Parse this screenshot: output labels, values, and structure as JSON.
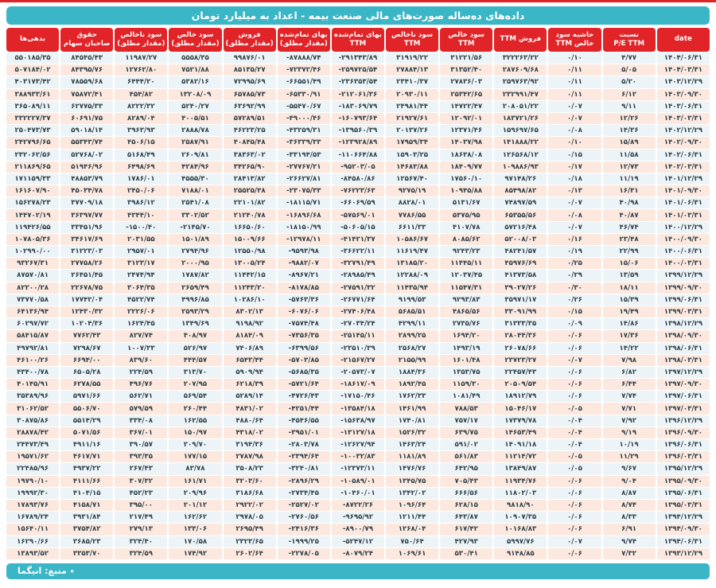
{
  "title": "داده‌های ده‌ساله صورت‌های مالی صنعت بیمه - اعداد به میلیارد تومان",
  "footer": {
    "source_label": "٭ منبع: انیگما"
  },
  "colors": {
    "accent_cyan": "#3bb6c6",
    "header_red": "#e02428",
    "row_pink": "#fce8de",
    "row_light": "#edf4f7",
    "cell_text": "#2f4049"
  },
  "table": {
    "columns": [
      {
        "id": "liabilities",
        "lines": [
          "بدهی‌ها"
        ]
      },
      {
        "id": "equity",
        "lines": [
          "حقوق",
          "صاحبان سهام"
        ]
      },
      {
        "id": "gross-profit-abs",
        "lines": [
          "سود ناخالص",
          "(مقدار مطلق)"
        ]
      },
      {
        "id": "net-profit-abs",
        "lines": [
          "سود خالص",
          "(مقدار مطلق)"
        ]
      },
      {
        "id": "sales-abs",
        "lines": [
          "فروش",
          "(مقدار مطلق)"
        ]
      },
      {
        "id": "cogs-abs",
        "lines": [
          "بهای تمام‌شده",
          "(مقدار مطلق)"
        ]
      },
      {
        "id": "cogs-ttm",
        "lines": [
          "بهای تمام‌شده",
          "TTM"
        ]
      },
      {
        "id": "gross-profit-ttm",
        "lines": [
          "سود ناخالص",
          "TTM"
        ]
      },
      {
        "id": "net-profit-ttm",
        "lines": [
          "سود خالص",
          "TTM"
        ]
      },
      {
        "id": "sales-ttm",
        "lines": [
          "فروش TTM"
        ]
      },
      {
        "id": "net-margin-ttm",
        "lines": [
          "حاشیه سود",
          "خالص TTM"
        ]
      },
      {
        "id": "pe-ratio-ttm",
        "lines": [
          "نسبت",
          "P/E  TTM"
        ]
      },
      {
        "id": "date",
        "lines": [
          "date"
        ]
      }
    ],
    "rows": [
      [
        "۵۵۰۱۸۵/۳۵",
        "۸۴۵۴۵/۴۳",
        "۱۱۹۸۷/۲۷",
        "۵۵۵۸/۳۵",
        "۹۹۸۷۶/۰۱",
        "-۸۷۸۸۸/۷۴",
        "-۲۹۱۳۴۳/۸۹",
        "۳۱۹۱۹/۲۲",
        "۳۱۲۲۱/۵۶",
        "۳۲۲۲۶۳/۲۲",
        "۰/۱۰",
        "۴/۷۷",
        "۱۴۰۴/۰۶/۳۱"
      ],
      [
        "۵۰۷۱۸۴/۰۲",
        "۸۴۳۹۵/۷۶",
        "۱۲۷۶۲/۸۰",
        "۷۵۲۱/۸۸",
        "۸۵۱۳۵/۲۷",
        "-۷۲۳۷۲/۴۶",
        "-۲۵۹۷۲۵/۵۴",
        "۲۷۸۸۴/۱۳",
        "۳۱۳۵۲/۴۰",
        "۲۸۷۶۰۹/۶۸",
        "۰/۱۱",
        "۵/۰۵",
        "۱۴۰۴/۰۳/۳۱"
      ],
      [
        "۴۰۳۱۷۳/۴۲",
        "۷۸۵۵۹/۶۸",
        "۶۴۴۴/۲۰",
        "۵۳۸۲/۱۶",
        "۷۲۹۹۵/۶۹",
        "-۶۶۵۵۱/۴۹",
        "-۲۳۶۳۵۳/۵۴",
        "۲۳۴۱۰/۳۷",
        "۲۷۸۳۶/۰۳",
        "۲۵۹۷۶۳/۹۲",
        "۰/۱۱",
        "۵/۲۰",
        "۱۴۰۳/۱۲/۲۹"
      ],
      [
        "۳۸۸۹۳۳/۶۱",
        "۷۵۸۷۲/۴۱",
        "۴۵۴/۸۲",
        "۱۳۲۰۸/۰۹",
        "۶۵۷۸۵/۷۳",
        "-۶۵۳۳۰/۹۱",
        "-۲۱۲۰۶۱/۳۶",
        "۲۰۹۳۰/۱۱",
        "۲۵۳۴۲/۶۵",
        "۲۳۲۹۹۱/۴۷",
        "۰/۱۱",
        "۶/۱۲",
        "۱۴۰۳/۰۹/۳۰"
      ],
      [
        "۳۶۵۰۸۹/۱۱",
        "۶۲۷۷۵/۳۳",
        "۸۲۲۲/۳۲",
        "۵۲۴۰/۲۷",
        "۶۳۶۹۲/۹۹",
        "-۵۵۴۷۰/۶۷",
        "-۱۸۳۰۶۹/۷۹",
        "۲۴۹۸۱/۴۴",
        "۱۴۷۲۲/۴۷",
        "۲۰۸۰۵۱/۲۲",
        "۰/۰۷",
        "۹/۱۱",
        "۱۴۰۳/۰۶/۳۱"
      ],
      [
        "۳۳۲۲۲۷/۳۷",
        "۶۰۶۹۱/۷۵",
        "۸۲۸۹/۰۴",
        "۴۰۰۵/۵۱",
        "۵۷۲۸۹/۵۱",
        "-۴۹۰۰۰/۴۶",
        "-۱۶۰۷۹۳/۶۴",
        "۲۱۹۲۷/۶۱",
        "۱۲۰۹۲/۰۱",
        "۱۸۳۷۲۱/۲۶",
        "۰/۰۷",
        "۱۲/۲۶",
        "۱۴۰۳/۰۳/۳۱"
      ],
      [
        "۲۵۰۴۷۳/۷۳",
        "۵۹۰۱۸/۱۴",
        "۳۹۶۳/۹۳",
        "۲۸۸۸/۷۸",
        "۴۶۲۲۳/۲۵",
        "-۴۳۲۵۹/۳۱",
        "-۱۳۹۵۶۰/۳۹",
        "۲۰۱۳۷/۲۶",
        "۱۲۳۷۱/۴۶",
        "۱۵۹۶۹۷/۶۵",
        "۰/۰۸",
        "۱۴/۳۶",
        "۱۴۰۲/۱۲/۲۹"
      ],
      [
        "۲۴۲۷۹۶/۶۵",
        "۵۵۳۴۳/۷۴",
        "۴۵۰۶/۱۵",
        "۲۵۸۷/۹۱",
        "۴۰۸۴۵/۴۸",
        "-۳۶۳۳۹/۳۳",
        "-۱۲۳۹۲۸/۸۹",
        "۱۷۹۵۹/۳۴",
        "۱۴۰۳۷/۹۸",
        "۱۴۱۸۸۸/۲۲",
        "۰/۱۰",
        "۱۵/۸۹",
        "۱۴۰۲/۰۹/۳۰"
      ],
      [
        "۲۳۲۰۶۲/۵۶",
        "۵۲۷۶۸/۰۲",
        "۵۱۶۸/۴۹",
        "۲۶۰۹/۸۱",
        "۳۸۳۶۳/۰۲",
        "-۳۳۱۹۴/۵۳",
        "-۱۱۰۶۶۴/۸۸",
        "۱۵۹۰۳/۲۵",
        "۱۸۶۳۸/۰۸",
        "۱۲۶۵۶۸/۱۲",
        "۰/۱۵",
        "۱۱/۵۸",
        "۱۴۰۲/۰۶/۳۱"
      ],
      [
        "۲۱۱۸۶۹/۶۵",
        "۵۱۹۴۶/۹۶",
        "۶۴۹۸/۶۹",
        "۴۲۸۴/۹۶",
        "۳۴۲۶۵/۹۰",
        "-۲۷۷۶۷/۲۱",
        "-۹۵۲۰۳/۰۵",
        "۱۴۶۸۳/۸۸",
        "۱۸۴۰۹/۷۷",
        "۱۰۹۸۸۶/۹۳",
        "۰/۱۷",
        "۱۲/۷۳",
        "۱۴۰۲/۰۳/۳۱"
      ],
      [
        "۱۷۱۱۵۹/۳۳",
        "۴۸۸۵۳/۷۹",
        "۱۷۸۶/۰۱",
        "۴۵۵۵/۳۰",
        "۲۸۴۱۳/۸۲",
        "-۲۶۶۲۷/۸۱",
        "-۸۴۵۸۰/۸۶",
        "۱۲۵۶۷/۴۰",
        "۱۷۵۶۰/۱۰",
        "۹۷۱۴۸/۲۶",
        "۰/۱۸",
        "۱۱/۱۹",
        "۱۴۰۱/۱۲/۲۹"
      ],
      [
        "۱۶۱۶۰۷/۹۰",
        "۴۵۰۳۴/۷۸",
        "۲۴۵۰/۰۶",
        "۷۱۸۸/۰۱",
        "۲۵۵۲۵/۳۸",
        "-۲۳۰۷۵/۳۳",
        "-۷۶۲۲۳/۶۳",
        "۹۲۷۵/۱۹",
        "۱۰۹۴۵/۸۸",
        "۸۵۴۹۸/۸۲",
        "۰/۱۳",
        "۱۶/۳۱",
        "۱۴۰۱/۰۹/۳۰"
      ],
      [
        "۱۵۶۲۷۸/۲۳",
        "۳۷۷۰۹/۱۸",
        "۳۹۸۶/۱۲",
        "۲۵۴۱/۰۸",
        "۲۲۱۰۱/۸۲",
        "-۱۸۱۱۵/۷۱",
        "-۶۶۰۶۹/۵۹",
        "۸۸۲۸/۰۱",
        "۵۱۳۱/۶۷",
        "۷۴۸۹۷/۵۹",
        "۰/۰۷",
        "۴۰/۹۸",
        "۱۴۰۱/۰۶/۳۱"
      ],
      [
        "۱۴۴۷۰۲/۱۹",
        "۳۶۳۹۷/۷۷",
        "۴۳۴۴/۱۰",
        "۳۳۰۲/۵۲",
        "۲۱۲۴۰/۷۸",
        "-۱۶۸۹۶/۶۸",
        "-۵۷۵۶۹/۰۱",
        "۷۷۸۶/۵۵",
        "۵۳۷۵/۹۵",
        "۶۵۳۵۵/۵۶",
        "۰/۰۸",
        "۴۰/۸۷",
        "۱۴۰۱/۰۳/۳۱"
      ],
      [
        "۱۱۹۴۲۶/۵۵",
        "۳۳۴۵۱/۹۶",
        "-۱۵۰۰/۴۰",
        "-۲۱۴۵/۷۰",
        "۱۶۶۵۰/۶۰",
        "-۱۸۱۵۰/۹۹",
        "-۵۰۶۰۵/۱۵",
        "۶۶۱۱/۳۳",
        "۴۱۰۷/۷۸",
        "۵۷۲۱۶/۴۸",
        "۰/۰۷",
        "۴۶/۷۴",
        "۱۴۰۰/۱۲/۲۹"
      ],
      [
        "۱۰۷۸۰۵/۳۶",
        "۳۴۶۱۷/۶۹",
        "۲۰۳۱/۵۵",
        "۱۵۰۱/۸۹",
        "۱۵۰۰۹/۶۶",
        "-۱۲۹۷۸/۱۱",
        "-۴۱۴۲۱/۳۷",
        "۱۰۵۸۶/۶۷",
        "۸۰۸۵/۶۲",
        "۵۲۰۰۸/۰۳",
        "۰/۱۶",
        "۲۳/۴۸",
        "۱۴۰۰/۰۹/۳۰"
      ],
      [
        "۱۰۲۹۹۰/۰۰",
        "۳۱۲۲۳/۰۳",
        "۲۹۵۷/۰۱",
        "۲۷۹۴/۹۶",
        "۱۲۵۵۰/۹۸",
        "-۹۵۹۳/۹۸",
        "-۳۶۶۲۲/۱۱",
        "۱۱۶۱۹/۴۷",
        "۹۲۴۳/۲۳",
        "۴۸۲۴۱/۵۷",
        "۰/۱۹",
        "۲۲/۹۹",
        "۱۴۰۰/۰۶/۳۱"
      ],
      [
        "۹۳۲۶۷/۳۱",
        "۲۷۷۵۸/۲۶",
        "۳۱۲۳/۱۷",
        "۲۰۰۰/۹۵",
        "۱۳۰۰۵/۲۴",
        "-۹۸۸۲/۰۷",
        "-۳۲۷۹۱/۴۹",
        "۱۳۱۸۵/۲۰",
        "۱۱۴۴۵/۱۱",
        "۴۵۹۷۶/۶۹",
        "۰/۲۵",
        "۱۵/۰۶",
        "۱۴۰۰/۰۳/۳۱"
      ],
      [
        "۸۷۵۷۰/۸۱",
        "۲۶۴۵۱/۴۵",
        "۲۴۷۴/۹۴",
        "۱۷۸۷/۸۲",
        "۱۱۴۴۲/۱۵",
        "-۸۹۶۷/۲۱",
        "-۲۸۹۸۵/۴۹",
        "۱۲۲۸۸/۰۹",
        "۱۲۰۳۷/۴۵",
        "۴۱۳۷۳/۵۸",
        "۰/۲۹",
        "۱۳/۵۹",
        "۱۳۹۹/۱۲/۲۹"
      ],
      [
        "۸۲۲۰۰/۲۸",
        "۲۲۶۷۸/۷۵",
        "۳۰۶۴/۳۵",
        "۲۶۵۹/۴۹",
        "۱۱۲۴۳/۲۰",
        "-۸۱۷۸/۸۵",
        "-۲۷۵۹۱/۳۲",
        "۱۱۴۳۵/۹۴",
        "۱۱۵۴۷/۳۱",
        "۳۹۰۲۷/۲۶",
        "۰/۳۰",
        "۱۸/۱۱",
        "۱۳۹۹/۰۹/۳۰"
      ],
      [
        "۷۳۷۷۰/۵۸",
        "۱۷۷۴۲/۰۴",
        "۴۵۲۲/۷۴",
        "۴۹۹۶/۸۵",
        "۱۰۲۸۶/۱۰",
        "-۵۷۶۳/۳۶",
        "-۲۶۷۷۱/۶۴",
        "۹۱۹۹/۵۳",
        "۹۲۹۳/۸۳",
        "۳۵۹۷۱/۱۷",
        "۰/۲۶",
        "۱۵/۳۹",
        "۱۳۹۹/۰۶/۳۱"
      ],
      [
        "۶۴۱۳۶/۹۴",
        "۱۲۴۳۰/۳۲",
        "۲۲۲۶/۰۶",
        "۲۵۹۳/۲۹",
        "۸۳۰۲/۱۳",
        "-۶۰۷۶/۰۶",
        "-۲۷۴۰۶/۴۸",
        "۵۶۸۵/۵۱",
        "۴۸۶۵/۵۶",
        "۳۳۰۹۱/۹۹",
        "۰/۱۵",
        "۱۹/۴۹",
        "۱۳۹۹/۰۳/۳۱"
      ],
      [
        "۶۰۲۹۷/۷۲",
        "۱۰۲۰۴/۳۶",
        "۱۶۲۴/۴۵",
        "۱۳۴۹/۶۹",
        "۹۱۹۸/۹۲",
        "-۷۵۷۴/۴۸",
        "-۲۷۰۳۴/۲۴",
        "۴۲۹۹/۱۱",
        "۲۷۳۵/۷۶",
        "۳۱۳۳۳/۳۵",
        "۰/۰۹",
        "۱۴/۸۶",
        "۱۳۹۸/۱۲/۲۹"
      ],
      [
        "۵۸۴۱۵/۸۷",
        "۷۷۶۲/۴۳",
        "۸۲۷/۷۴",
        "۴۰۸/۹۷",
        "۸۱۸۴/۰۹",
        "-۷۳۵۶/۳۵",
        "-۲۵۱۴۵/۱۱",
        "۲۸۹۹/۲۵",
        "۱۶۹۴/۲۰",
        "۲۸۰۴۴/۳۶",
        "۰/۰۶",
        "۱۷/۳۶",
        "۱۳۹۸/۰۹/۳۰"
      ],
      [
        "۴۹۷۹۲/۸۱",
        "۷۲۹۸/۶۷",
        "۱۰۰۷/۳۳",
        "۵۲۶/۹۷",
        "۷۴۰۶/۸۹",
        "-۶۳۹۹/۵۶",
        "-۲۳۵۱۰/۳۹",
        "۲۵۶۸/۲۷",
        "۱۴۹۳/۱۹",
        "۲۶۰۷۸/۶۶",
        "۰/۰۶",
        "۱۴/۲۲",
        "۱۳۹۸/۰۶/۳۱"
      ],
      [
        "۴۶۱۰۰/۲۶",
        "۶۶۹۴/۰۰",
        "۸۳۹/۶۰",
        "۴۴۴/۵۷",
        "۶۵۴۳/۴۴",
        "-۵۷۰۳/۸۵",
        "-۲۱۵۶۷/۲۷",
        "۲۱۵۵/۹۹",
        "۱۶۰۱/۴۸",
        "۲۳۷۲۳/۲۷",
        "۰/۰۷",
        "۷/۹۸",
        "۱۳۹۸/۰۳/۳۱"
      ],
      [
        "۴۳۴۰۰/۷۸",
        "۶۵۰۵/۲۸",
        "۲۲۴/۵۹",
        "۳۱۳/۷۰",
        "۵۹۰۹/۹۴",
        "-۵۶۸۵/۳۵",
        "-۲۰۵۷۳/۰۷",
        "۱۸۸۴/۳۶",
        "۱۳۵۳/۷۵",
        "۲۲۴۵۷/۴۳",
        "۰/۰۶",
        "۶/۸۲",
        "۱۳۹۷/۱۲/۲۹"
      ],
      [
        "۴۰۱۴۵/۹۱",
        "۶۲۷۸/۵۵",
        "۴۹۶/۷۶",
        "۲۰۷/۹۵",
        "۶۲۱۸/۳۹",
        "-۵۷۲۱/۶۴",
        "-۱۸۶۱۷/۰۹",
        "۱۸۹۲/۴۵",
        "۱۱۵۹/۳۰",
        "۲۰۵۰۹/۵۴",
        "۰/۰۶",
        "۶/۴۴",
        "۱۳۹۷/۰۹/۳۰"
      ],
      [
        "۳۵۳۸۹/۹۶",
        "۵۹۷۱/۶۶",
        "۵۶۲/۷۱",
        "۵۶۹/۵۴",
        "۵۲۸۹/۱۴",
        "-۴۷۲۶/۴۳",
        "-۱۷۱۵۰/۴۶",
        "۱۷۶۲/۳۳",
        "۱۰۸۱/۴۹",
        "۱۸۹۱۲/۷۹",
        "۰/۰۶",
        "۷/۷۴",
        "۱۳۹۷/۰۶/۳۱"
      ],
      [
        "۳۱۰۶۲/۵۲",
        "۵۵۰۶/۷۰",
        "۵۷۹/۵۹",
        "۲۶۰/۴۴",
        "۴۸۳۱/۰۲",
        "-۴۲۵۱/۴۴",
        "-۱۳۵۸۴/۱۸",
        "۱۴۶۱/۹۹",
        "۷۸۸/۵۳",
        "۱۵۰۴۶/۱۷",
        "۰/۰۵",
        "۷/۷۱",
        "۱۳۹۷/۰۳/۳۱"
      ],
      [
        "۳۰۸۷۵/۸۶",
        "۵۵۱۴/۲۹",
        "۳۳۴/۰۸",
        "۱۶۲/۵۵",
        "۴۸۸۰/۶۴",
        "-۴۵۴۶/۵۵",
        "-۱۵۶۳۸/۹۷",
        "۱۷۴۰/۸۱",
        "۷۵۷/۱۷",
        "۱۷۳۷۹/۷۸",
        "۰/۰۴",
        "۷/۹۲",
        "۱۳۹۶/۱۲/۲۹"
      ],
      [
        "۲۸۸۷۸/۴۲",
        "۵۰۷۱/۵۶",
        "۳۶۷/۰۱",
        "۱۵۰/۹۷",
        "۴۳۱۸/۰۲",
        "-۳۹۵۱/۰۱",
        "-۱۳۱۲۷/۱۸",
        "۱۵۲۶/۳۲",
        "۶۳۹/۷۵",
        "۱۴۶۵۳/۴۹",
        "۰/۰۴",
        "۹/۱۹",
        "۱۳۹۶/۰۹/۳۰"
      ],
      [
        "۲۴۴۷۳/۴۹",
        "۴۹۱۱/۱۶",
        "۳۹۰/۵۷",
        "۲۰۹/۷۰",
        "۳۱۹۴/۳۶",
        "-۲۸۰۳/۷۸",
        "-۱۲۶۲۷/۹۴",
        "۱۴۶۳/۲۴",
        "۵۹۱/۰۲",
        "۱۴۰۹۱/۱۸",
        "۰/۰۴",
        "۱۰/۱۹",
        "۱۳۹۶/۰۶/۳۱"
      ],
      [
        "۱۹۵۷۱/۶۲",
        "۴۶۱۷/۷۱",
        "۳۹۳/۳۵",
        "۱۷۷/۱۵",
        "۲۷۸۷/۹۸",
        "-۲۳۹۴/۶۴",
        "-۱۰۰۳۲/۸۳",
        "۱۱۸۱/۸۹",
        "۵۶۱/۸۳",
        "۱۱۲۱۴/۷۲",
        "۰/۰۵",
        "۱۱/۲۹",
        "۱۳۹۶/۰۳/۳۱"
      ],
      [
        "۲۲۴۸۵/۹۶",
        "۴۹۳۷/۲۲",
        "۲۶۷/۴۳",
        "۸۳/۷۸",
        "۳۵۰۸/۲۳",
        "-۳۲۴۰/۸۱",
        "-۱۲۳۷۳/۱۱",
        "۱۴۷۶/۷۶",
        "۶۴۲/۹۵",
        "۱۳۸۴۹/۸۷",
        "۰/۰۵",
        "۹/۶۷",
        "۱۳۹۵/۱۲/۲۹"
      ],
      [
        "۱۹۷۹۰/۱۰",
        "۴۱۱۱/۶۶",
        "۳۰۷/۳۲",
        "۱۶۱/۷۱",
        "۳۲۰۳/۶۰",
        "-۲۸۹۶/۲۹",
        "-۱۰۵۸۹/۰۱",
        "۱۳۴۵/۷۵",
        "۷۰۵/۴۳",
        "۱۱۹۳۴/۷۶",
        "۰/۰۶",
        "۹/۰۴",
        "۱۳۹۵/۰۹/۳۰"
      ],
      [
        "۱۹۹۹۲/۳۰",
        "۴۱۰۴/۱۵",
        "۴۵۲/۲۳",
        "۲۰۹/۹۶",
        "۳۱۸۶/۶۸",
        "-۲۷۳۴/۴۵",
        "-۱۰۴۶۰/۰۱",
        "۱۳۴۲/۰۲",
        "۶۶۶/۵۶",
        "۱۱۸۰۲/۰۳",
        "۰/۰۶",
        "۸/۸۷",
        "۱۳۹۵/۰۶/۳۱"
      ],
      [
        "۱۷۸۹۳/۷۶",
        "۴۱۵۸/۷۱",
        "۳۹۵/۰۰",
        "۲۰۱/۱۲",
        "۲۹۲۲/۰۲",
        "-۲۵۲۷/۰۲",
        "-۸۷۲۲/۲۶",
        "۱۰۹۶/۶۴",
        "۶۲۸/۱۵",
        "۹۸۱۸/۹۰",
        "۰/۰۶",
        "۸/۷۴",
        "۱۳۹۵/۰۳/۳۱"
      ],
      [
        "۱۶۷۸۹/۲۴",
        "۳۹۳۱/۸۴",
        "۲۱۷/۴۹",
        "۱۶۲/۶۲",
        "۲۹۷۸/۰۵",
        "-۲۷۶۰/۵۶",
        "-۹۶۹۵/۹۲",
        "۱۲۱۱/۴۴",
        "۶۴۳/۸۷",
        "۱۰۹۰۷/۳۵",
        "۰/۰۶",
        "۸/۳۳",
        "۱۳۹۴/۱۲/۲۹"
      ],
      [
        "۱۵۶۴۰/۱۱",
        "۳۷۵۴/۸۲",
        "۲۷۹/۱۳",
        "۱۳۳/۰۶",
        "۲۶۹۵/۴۹",
        "-۲۴۱۶/۳۶",
        "-۸۹۰۰/۷۹",
        "۱۲۶۸/۰۴",
        "۶۱۷/۴۲",
        "۱۰۱۶۸/۸۳",
        "۰/۰۶",
        "۶/۹۱",
        "۱۳۹۴/۰۹/۳۰"
      ],
      [
        "۱۶۲۹۰/۶۶",
        "۳۶۸۵/۲۳",
        "۳۲۴/۴۰",
        "۱۷۰/۵۸",
        "۲۳۲۳/۶۵",
        "-۱۹۹۹/۲۵",
        "-۵۲۴۷/۱۲",
        "۷۵۰/۶۴",
        "۴۲۷/۹۳",
        "۵۹۹۷/۷۶",
        "۰/۰۷",
        "۹/۷۴",
        "۱۳۹۴/۰۶/۳۱"
      ],
      [
        "۱۳۸۹۳/۵۲",
        "۳۳۵۳/۷۰",
        "۳۲۴/۵۹",
        "۱۷۴/۹۲",
        "۲۶۰۲/۶۴",
        "-۲۲۷۸/۰۵",
        "-۸۰۷۹/۲۴",
        "۱۰۶۹/۶۱",
        "۵۳۰/۴۱",
        "۹۱۴۸/۸۵",
        "۰/۰۶",
        "۷/۳۲",
        "۱۳۹۳/۱۲/۲۹"
      ]
    ]
  }
}
